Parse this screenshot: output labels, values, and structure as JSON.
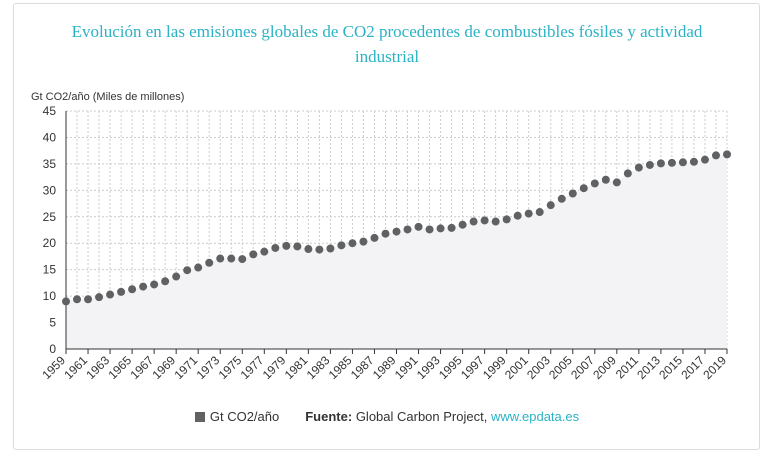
{
  "title_lines": [
    "Evolución en las emisiones globales de CO2 procedentes de combustibles fósiles y actividad",
    "industrial"
  ],
  "legend": {
    "series_label": "Gt CO2/año",
    "source_label": "Fuente:",
    "source_text": "Global Carbon Project,",
    "source_link": "www.epdata.es"
  },
  "colors": {
    "title": "#2ab3c5",
    "point": "#5f6163",
    "area": "#f3f3f6",
    "grid": "#cccccc"
  },
  "chart_data": {
    "type": "scatter",
    "title": "Evolución en las emisiones globales de CO2 procedentes de combustibles fósiles y actividad industrial",
    "ylabel": "Gt CO2/año (Miles de millones)",
    "xlabel": "",
    "ylim": [
      0,
      45
    ],
    "yticks": [
      0,
      5,
      10,
      15,
      20,
      25,
      30,
      35,
      40,
      45
    ],
    "xticks": [
      1959,
      1961,
      1963,
      1965,
      1967,
      1969,
      1971,
      1973,
      1975,
      1977,
      1979,
      1981,
      1983,
      1985,
      1987,
      1989,
      1991,
      1993,
      1995,
      1997,
      1999,
      2001,
      2003,
      2005,
      2007,
      2009,
      2011,
      2013,
      2015,
      2017,
      2019
    ],
    "grid": true,
    "legend_position": "bottom",
    "series": [
      {
        "name": "Gt CO2/año",
        "x": [
          1959,
          1960,
          1961,
          1962,
          1963,
          1964,
          1965,
          1966,
          1967,
          1968,
          1969,
          1970,
          1971,
          1972,
          1973,
          1974,
          1975,
          1976,
          1977,
          1978,
          1979,
          1980,
          1981,
          1982,
          1983,
          1984,
          1985,
          1986,
          1987,
          1988,
          1989,
          1990,
          1991,
          1992,
          1993,
          1994,
          1995,
          1996,
          1997,
          1998,
          1999,
          2000,
          2001,
          2002,
          2003,
          2004,
          2005,
          2006,
          2007,
          2008,
          2009,
          2010,
          2011,
          2012,
          2013,
          2014,
          2015,
          2016,
          2017,
          2018,
          2019
        ],
        "values": [
          9.0,
          9.4,
          9.4,
          9.8,
          10.3,
          10.8,
          11.3,
          11.8,
          12.2,
          12.8,
          13.7,
          14.9,
          15.4,
          16.3,
          17.1,
          17.1,
          17.0,
          17.9,
          18.4,
          19.1,
          19.5,
          19.4,
          18.9,
          18.8,
          19.0,
          19.6,
          20.0,
          20.3,
          21.0,
          21.8,
          22.2,
          22.6,
          23.1,
          22.6,
          22.8,
          22.9,
          23.5,
          24.1,
          24.3,
          24.1,
          24.5,
          25.2,
          25.6,
          25.9,
          27.2,
          28.4,
          29.4,
          30.4,
          31.3,
          32.0,
          31.5,
          33.2,
          34.3,
          34.8,
          35.1,
          35.2,
          35.3,
          35.4,
          35.8,
          36.6,
          36.8
        ]
      }
    ]
  }
}
